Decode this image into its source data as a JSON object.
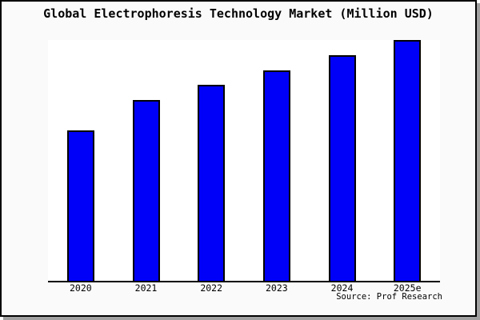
{
  "title": "Global Electrophoresis Technology Market (Million USD)",
  "source_note": "Source: Prof Research",
  "chart_data": {
    "type": "bar",
    "title": "Global Electrophoresis Technology Market (Million USD)",
    "categories": [
      "2020",
      "2021",
      "2022",
      "2023",
      "2024",
      "2025e"
    ],
    "values": [
      10,
      12,
      13,
      14,
      15,
      16
    ],
    "value_scale_note": "y-axis unlabeled; values are relative bar heights on a zero baseline",
    "xlabel": "",
    "ylabel": "",
    "ylim": [
      0,
      16
    ],
    "grid": false,
    "legend": false,
    "annotation": "Source: Prof Research"
  },
  "colors": {
    "bar_fill": "#0000f8",
    "bar_border": "#000000",
    "axis_line": "#000000",
    "page_background": "#fafafa",
    "plot_background": "#ffffff",
    "frame_border": "#000000",
    "frame_shadow": "#a0a0a0",
    "text": "#000000"
  }
}
